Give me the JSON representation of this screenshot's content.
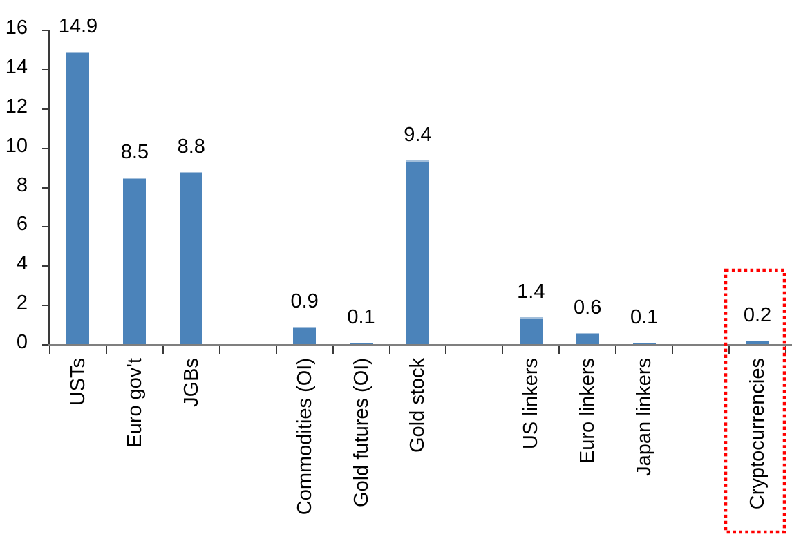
{
  "chart_data": {
    "type": "bar",
    "title": "",
    "xlabel": "",
    "ylabel": "",
    "categories": [
      "USTs",
      "Euro gov't",
      "JGBs",
      "",
      "Commodities (OI)",
      "Gold futures (OI)",
      "Gold stock",
      "",
      "US linkers",
      "Euro linkers",
      "Japan linkers",
      "",
      "Cryptocurrencies"
    ],
    "values": [
      14.9,
      8.5,
      8.8,
      null,
      0.9,
      0.1,
      9.4,
      null,
      1.4,
      0.6,
      0.1,
      null,
      0.2
    ],
    "data_labels": [
      "14.9",
      "8.5",
      "8.8",
      null,
      "0.9",
      "0.1",
      "9.4",
      null,
      "1.4",
      "0.6",
      "0.1",
      null,
      "0.2"
    ],
    "ylim": [
      0,
      16
    ],
    "yticks": [
      0,
      2,
      4,
      6,
      8,
      10,
      12,
      14,
      16
    ],
    "grid": false,
    "legend": false,
    "colors": {
      "bar": "#4B83BA",
      "bar_top_highlight": "#A3BFDB",
      "axis_line": "#7F7F7F",
      "tick": "#3A3A3A",
      "text": "#000000",
      "background": "#FFFFFF",
      "highlight_box": "#FF0000"
    },
    "highlight": {
      "category": "Cryptocurrencies",
      "style": "dotted-box"
    }
  }
}
